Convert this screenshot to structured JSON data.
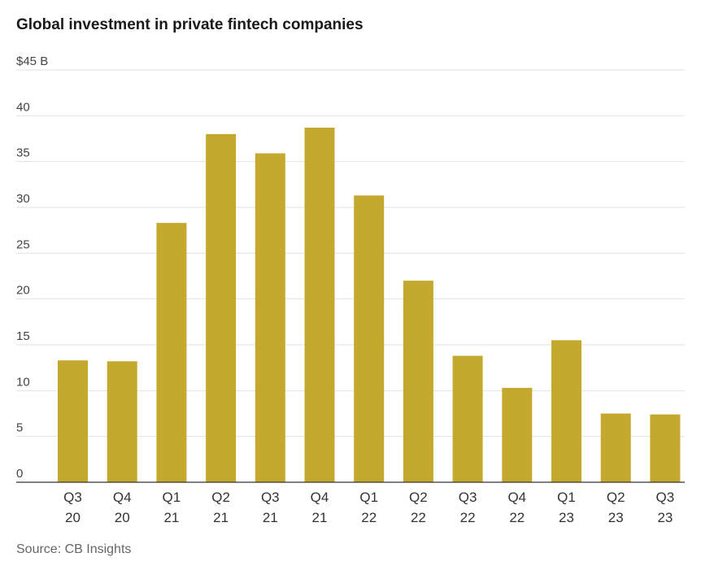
{
  "chart_data": {
    "type": "bar",
    "title": "Global investment in private fintech companies",
    "xlabel": "",
    "ylabel": "",
    "categories": [
      [
        "Q3",
        "20"
      ],
      [
        "Q4",
        "20"
      ],
      [
        "Q1",
        "21"
      ],
      [
        "Q2",
        "21"
      ],
      [
        "Q3",
        "21"
      ],
      [
        "Q4",
        "21"
      ],
      [
        "Q1",
        "22"
      ],
      [
        "Q2",
        "22"
      ],
      [
        "Q3",
        "22"
      ],
      [
        "Q4",
        "22"
      ],
      [
        "Q1",
        "23"
      ],
      [
        "Q2",
        "23"
      ],
      [
        "Q3",
        "23"
      ]
    ],
    "values": [
      13.3,
      13.2,
      28.3,
      38.0,
      35.9,
      38.7,
      31.3,
      22.0,
      13.8,
      10.3,
      15.5,
      7.5,
      7.4
    ],
    "ylim": [
      0,
      45
    ],
    "yticks": [
      0,
      5,
      10,
      15,
      20,
      25,
      30,
      35,
      40,
      45
    ],
    "ytick_labels": [
      "0",
      "5",
      "10",
      "15",
      "20",
      "25",
      "30",
      "35",
      "40",
      "$45 B"
    ],
    "grid": true,
    "bar_color": "#c4a92e",
    "grid_color": "#e2e2e2",
    "axis_color": "#333333",
    "source": "Source: CB Insights"
  }
}
